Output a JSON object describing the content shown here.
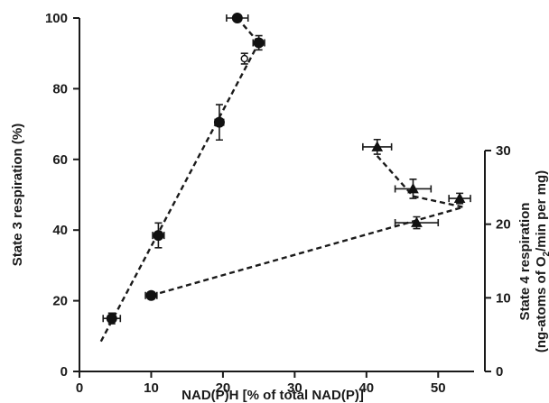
{
  "chart_data": {
    "type": "scatter",
    "xlabel": "NAD(P)H [% of total NAD(P)]",
    "ylabel": "State 3 respiration (%)",
    "y2label_line1": "State 4 respiration",
    "y2label_line2_prefix": "(ng-atoms of O",
    "y2label_line2_sub": "2",
    "y2label_line2_suffix": "/min per mg)",
    "xlim": [
      0,
      55
    ],
    "ylim": [
      0,
      100
    ],
    "y2lim": [
      0,
      30
    ],
    "x_ticks": [
      0,
      10,
      20,
      30,
      40,
      50
    ],
    "y_ticks": [
      0,
      20,
      40,
      60,
      80,
      100
    ],
    "y2_ticks": [
      0,
      10,
      20,
      30
    ],
    "grid": false,
    "series": [
      {
        "marker": "circle",
        "axis": "left",
        "points": [
          {
            "x": 4.5,
            "y": 15,
            "xerr": 1.2,
            "yerr": 1.5
          },
          {
            "x": 10,
            "y": 21.5,
            "xerr": 0.8,
            "yerr": 1.0
          },
          {
            "x": 11,
            "y": 38.5,
            "xerr": 0.8,
            "yerr": 3.5
          },
          {
            "x": 19.5,
            "y": 70.5,
            "xerr": 0.6,
            "yerr": 5.0
          },
          {
            "x": 22,
            "y": 100,
            "xerr": 1.5,
            "yerr": 0
          },
          {
            "x": 25,
            "y": 93,
            "xerr": 0.8,
            "yerr": 2.0
          }
        ]
      },
      {
        "marker": "open-circle",
        "axis": "left",
        "points": [
          {
            "x": 23,
            "y": 88.5,
            "xerr": 0,
            "yerr": 1.5
          }
        ]
      },
      {
        "marker": "triangle",
        "axis": "right",
        "points": [
          {
            "x": 41.5,
            "y": 30.5,
            "xerr": 2.0,
            "yerr": 1.0
          },
          {
            "x": 46.5,
            "y": 24.8,
            "xerr": 2.5,
            "yerr": 1.3
          },
          {
            "x": 53,
            "y": 23.5,
            "xerr": 1.5,
            "yerr": 0.7
          },
          {
            "x": 47,
            "y": 20.2,
            "xerr": 3.0,
            "yerr": 0.8
          }
        ]
      }
    ],
    "lines": [
      {
        "style": "dashed",
        "points": [
          [
            3,
            8.5
          ],
          [
            25,
            93
          ]
        ]
      },
      {
        "style": "dashed",
        "points": [
          [
            22,
            100
          ],
          [
            25,
            93
          ]
        ]
      },
      {
        "style": "dashed",
        "points": [
          [
            10,
            21.5
          ],
          [
            53.5,
            46.5
          ]
        ]
      },
      {
        "style": "dashed",
        "points": [
          [
            41.5,
            61
          ],
          [
            46.5,
            49.6
          ],
          [
            53.5,
            46.5
          ]
        ]
      }
    ]
  }
}
